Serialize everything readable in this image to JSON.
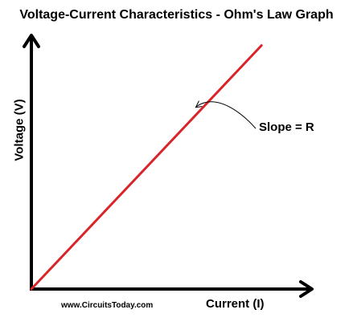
{
  "chart_data": {
    "type": "line",
    "title": "Voltage-Current Characteristics - Ohm's Law Graph",
    "xlabel": "Current (I)",
    "ylabel": "Voltage (V)",
    "xlim": [
      0,
      1
    ],
    "ylim": [
      0,
      1
    ],
    "grid": false,
    "series": [
      {
        "color": "#d9252a",
        "x": [
          0,
          0.82
        ],
        "y": [
          0,
          0.96
        ]
      }
    ],
    "annotations": [
      {
        "text": "Slope = R",
        "x": 0.58,
        "y": 0.71
      }
    ],
    "axis_color": "#000000"
  },
  "credit": "www.CircuitsToday.com"
}
